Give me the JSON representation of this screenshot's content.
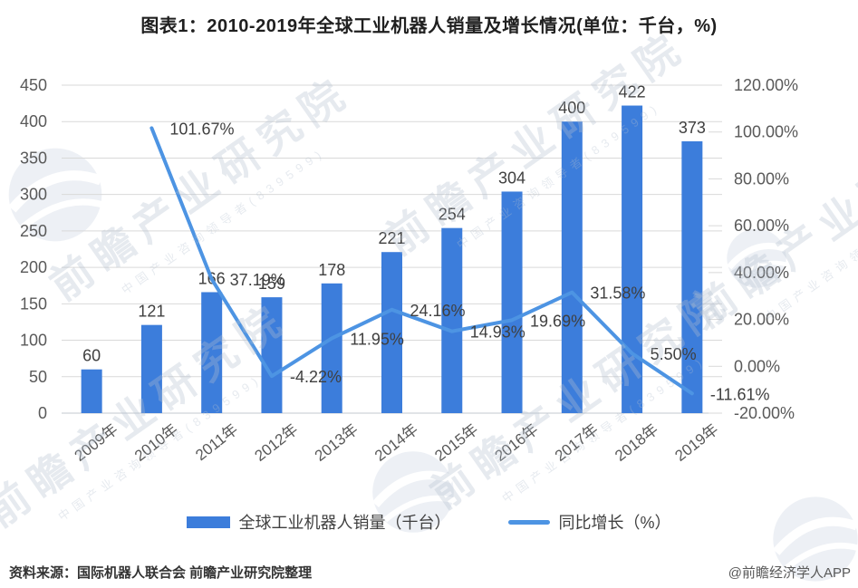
{
  "title": "图表1：2010-2019年全球工业机器人销量及增长情况(单位：千台，%)",
  "chart_data": {
    "type": "bar",
    "subtype": "bar+line combo, dual axis",
    "categories": [
      "2009年",
      "2010年",
      "2011年",
      "2012年",
      "2013年",
      "2014年",
      "2015年",
      "2016年",
      "2017年",
      "2018年",
      "2019年"
    ],
    "series": [
      {
        "name": "全球工业机器人销量（千台）",
        "type": "bar",
        "axis": "left",
        "values": [
          60,
          121,
          166,
          159,
          178,
          221,
          254,
          304,
          400,
          422,
          373
        ],
        "labels": [
          "60",
          "121",
          "166",
          "159",
          "178",
          "221",
          "254",
          "304",
          "400",
          "422",
          "373"
        ]
      },
      {
        "name": "同比增长（%）",
        "type": "line",
        "axis": "right",
        "values": [
          null,
          101.67,
          37.19,
          -4.22,
          11.95,
          24.16,
          14.93,
          19.69,
          31.58,
          5.5,
          -11.61
        ],
        "labels": [
          null,
          "101.67%",
          "37.19%",
          "-4.22%",
          "11.95%",
          "24.16%",
          "14.93%",
          "19.69%",
          "31.58%",
          "5.50%",
          "-11.61%"
        ]
      }
    ],
    "left_axis": {
      "min": 0,
      "max": 450,
      "step": 50,
      "ticks": [
        "0",
        "50",
        "100",
        "150",
        "200",
        "250",
        "300",
        "350",
        "400",
        "450"
      ]
    },
    "right_axis": {
      "min": -20,
      "max": 120,
      "step": 20,
      "ticks": [
        "-20.00%",
        "0.00%",
        "20.00%",
        "40.00%",
        "60.00%",
        "80.00%",
        "100.00%",
        "120.00%"
      ]
    },
    "grid": true,
    "legend_position": "bottom",
    "title": "图表1：2010-2019年全球工业机器人销量及增长情况(单位：千台，%)"
  },
  "legend": {
    "bar_label": "全球工业机器人销量（千台）",
    "line_label": "同比增长（%）"
  },
  "footer": {
    "source": "资料来源：国际机器人联合会 前瞻产业研究院整理",
    "credit": "@前瞻经济学人APP"
  },
  "watermark": {
    "text": "前瞻产业研究院",
    "subtext": "中国产业咨询领导者(839599)",
    "logo": "globe-icon"
  },
  "colors": {
    "bar": "#3C7DDB",
    "line": "#4D94E3",
    "grid": "#D9D9D9",
    "axis_line": "#C3C8CF",
    "axis_text": "#595959",
    "label_text": "#3F3F3F"
  }
}
